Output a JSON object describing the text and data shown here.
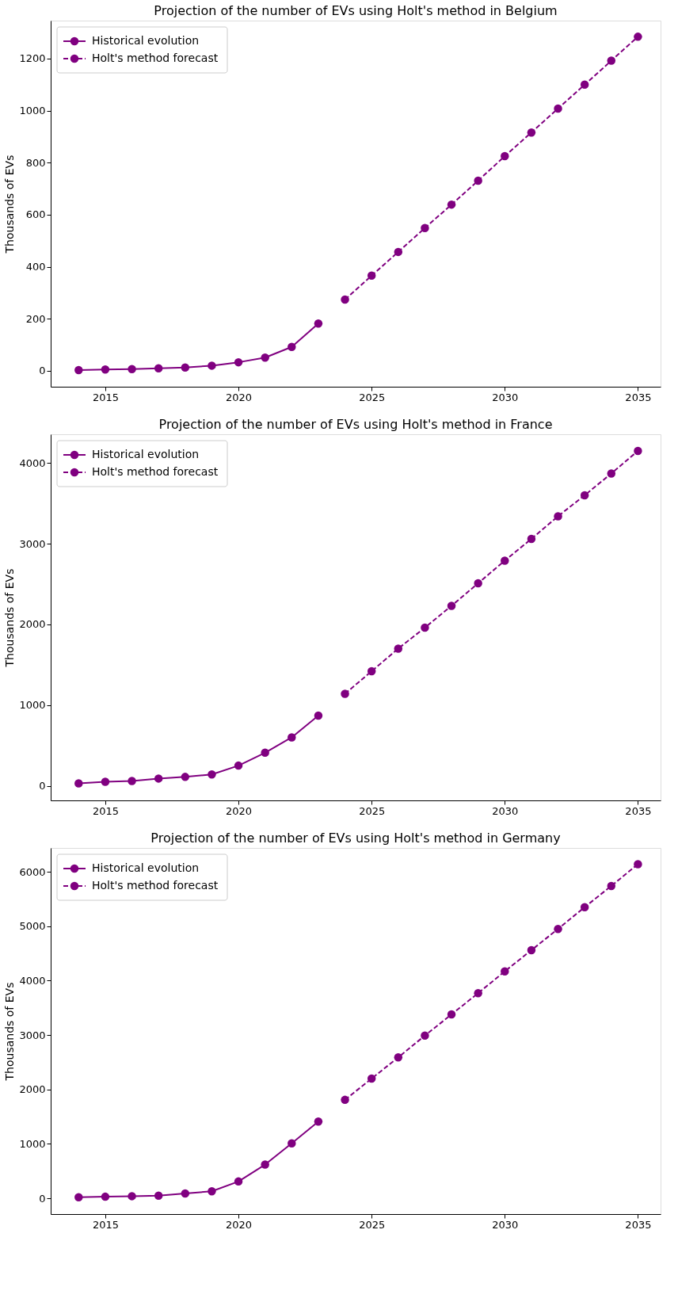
{
  "chart_data": [
    {
      "type": "line",
      "title": "Projection of the number of EVs using Holt's method in Belgium",
      "ylabel": "Thousands of EVs",
      "xlim": [
        2012.95,
        2035.85
      ],
      "xticks": [
        2015,
        2020,
        2025,
        2030,
        2035
      ],
      "ylim": [
        -61,
        1346
      ],
      "yticks": [
        0,
        200,
        400,
        600,
        800,
        1000,
        1200
      ],
      "legend": "top left",
      "marker": "circle",
      "grid": false,
      "series": [
        {
          "name": "Historical evolution",
          "color": "#800080",
          "line_style": "solid",
          "x": [
            2014,
            2015,
            2016,
            2017,
            2018,
            2019,
            2020,
            2021,
            2022,
            2023
          ],
          "values": [
            3,
            5,
            7,
            10,
            13,
            20,
            33,
            51,
            92,
            182
          ]
        },
        {
          "name": "Holt's method forecast",
          "color": "#800080",
          "line_style": "dashed",
          "x": [
            2024,
            2025,
            2026,
            2027,
            2028,
            2029,
            2030,
            2031,
            2032,
            2033,
            2034,
            2035
          ],
          "values": [
            274,
            366,
            457,
            549,
            639,
            731,
            825,
            916,
            1008,
            1100,
            1192,
            1284
          ]
        }
      ]
    },
    {
      "type": "line",
      "title": "Projection of the number of EVs using Holt's method in France",
      "ylabel": "Thousands of EVs",
      "xlim": [
        2012.95,
        2035.85
      ],
      "xticks": [
        2015,
        2020,
        2025,
        2030,
        2035
      ],
      "ylim": [
        -181,
        4356
      ],
      "yticks": [
        0,
        1000,
        2000,
        3000,
        4000
      ],
      "legend": "top left",
      "marker": "circle",
      "grid": false,
      "series": [
        {
          "name": "Historical evolution",
          "color": "#800080",
          "line_style": "solid",
          "x": [
            2014,
            2015,
            2016,
            2017,
            2018,
            2019,
            2020,
            2021,
            2022,
            2023
          ],
          "values": [
            30,
            50,
            60,
            90,
            110,
            140,
            250,
            410,
            600,
            870
          ]
        },
        {
          "name": "Holt's method forecast",
          "color": "#800080",
          "line_style": "dashed",
          "x": [
            2024,
            2025,
            2026,
            2027,
            2028,
            2029,
            2030,
            2031,
            2032,
            2033,
            2034,
            2035
          ],
          "values": [
            1140,
            1420,
            1700,
            1960,
            2230,
            2510,
            2790,
            3060,
            3340,
            3600,
            3870,
            4150
          ]
        }
      ]
    },
    {
      "type": "line",
      "title": "Projection of the number of EVs using Holt's method in Germany",
      "ylabel": "Thousands of EVs",
      "xlim": [
        2012.95,
        2035.85
      ],
      "xticks": [
        2015,
        2020,
        2025,
        2030,
        2035
      ],
      "ylim": [
        -289,
        6438
      ],
      "yticks": [
        0,
        1000,
        2000,
        3000,
        4000,
        5000,
        6000
      ],
      "legend": "top left",
      "marker": "circle",
      "grid": false,
      "series": [
        {
          "name": "Historical evolution",
          "color": "#800080",
          "line_style": "solid",
          "x": [
            2014,
            2015,
            2016,
            2017,
            2018,
            2019,
            2020,
            2021,
            2022,
            2023
          ],
          "values": [
            20,
            30,
            40,
            50,
            90,
            130,
            310,
            620,
            1010,
            1410
          ]
        },
        {
          "name": "Holt's method forecast",
          "color": "#800080",
          "line_style": "dashed",
          "x": [
            2024,
            2025,
            2026,
            2027,
            2028,
            2029,
            2030,
            2031,
            2032,
            2033,
            2034,
            2035
          ],
          "values": [
            1810,
            2200,
            2590,
            2990,
            3380,
            3770,
            4170,
            4560,
            4950,
            5350,
            5740,
            6140
          ]
        }
      ]
    }
  ]
}
